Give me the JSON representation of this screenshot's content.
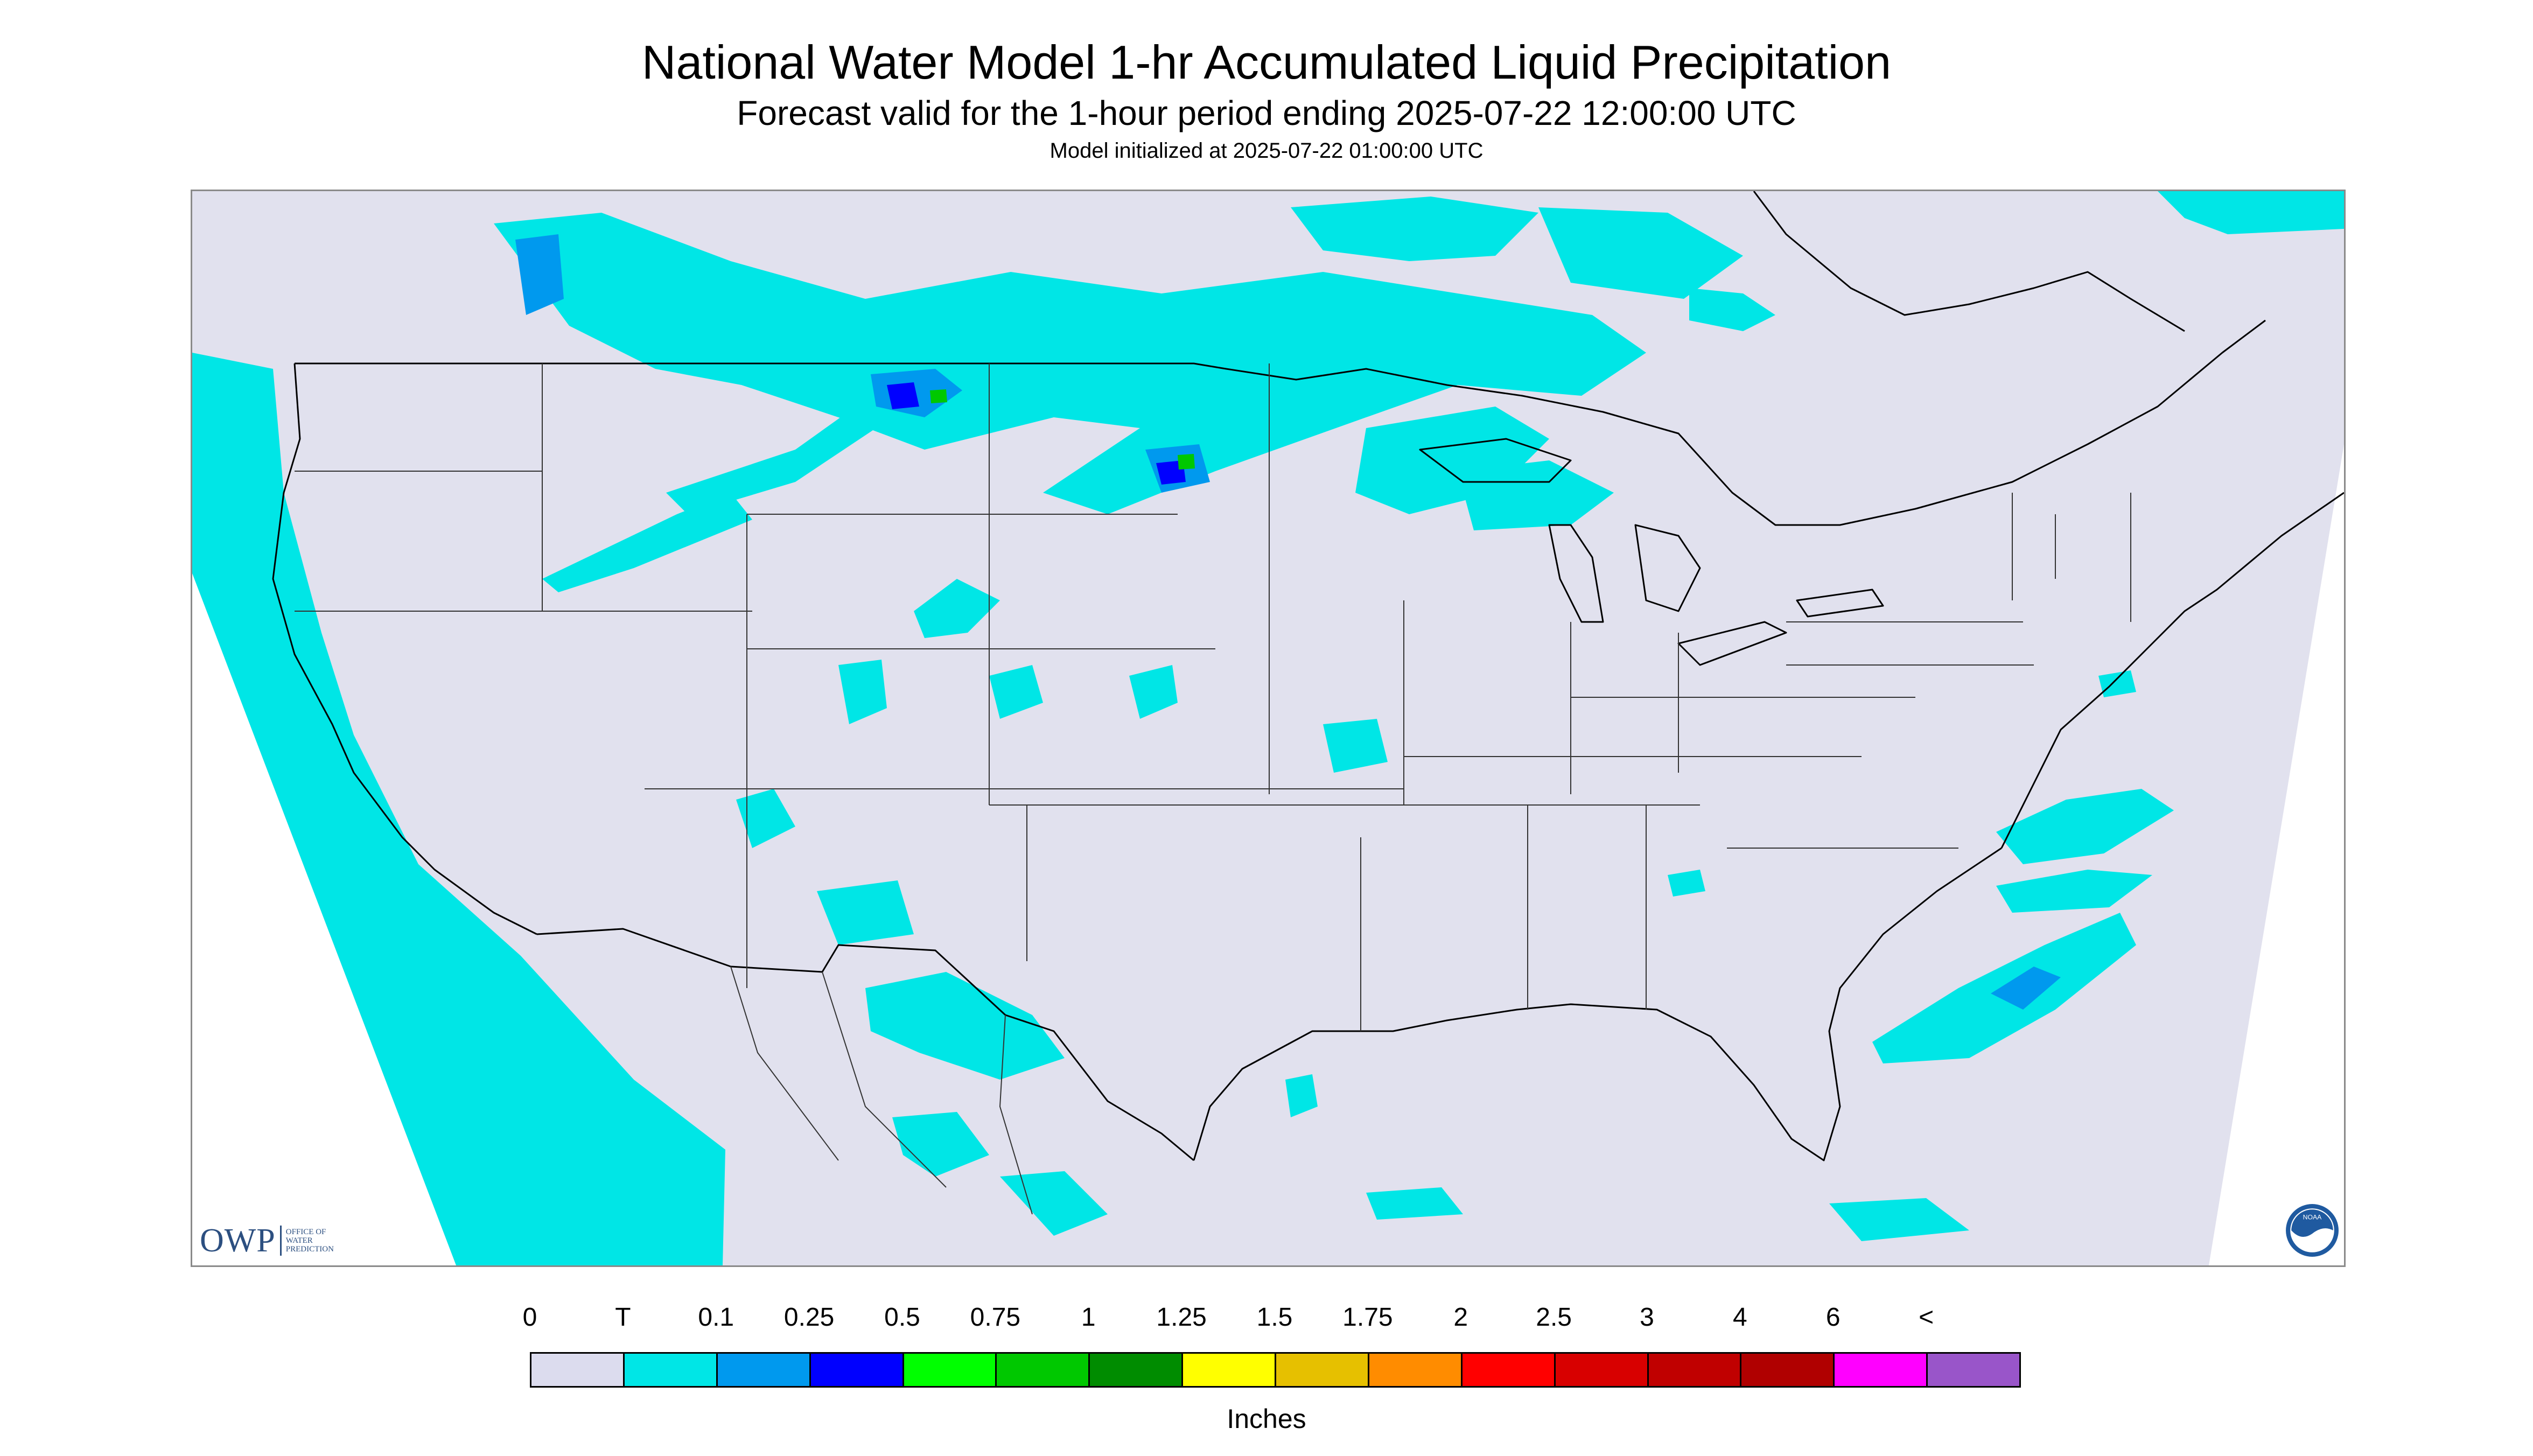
{
  "header": {
    "title": "National Water Model 1-hr Accumulated Liquid Precipitation",
    "subtitle": "Forecast valid for the 1-hour period ending 2025-07-22 12:00:00 UTC",
    "init": "Model initialized at 2025-07-22 01:00:00 UTC"
  },
  "map": {
    "projection_fill": "#e1e1ee",
    "outside_fill": "#ffffff",
    "border_color": "#000000"
  },
  "logos": {
    "owp_letters": "OWP",
    "owp_text_lines": [
      "Office of",
      "Water",
      "Prediction"
    ],
    "noaa_text": "NOAA",
    "owp_color": "#2c4f80",
    "noaa_color": "#1f5aa0"
  },
  "legend": {
    "labels": [
      "0",
      "T",
      "0.1",
      "0.25",
      "0.5",
      "0.75",
      "1",
      "1.25",
      "1.5",
      "1.75",
      "2",
      "2.5",
      "3",
      "4",
      "6",
      "<"
    ],
    "colors": [
      "#dcdcee",
      "#00e6e6",
      "#0099ee",
      "#0000ff",
      "#00ff00",
      "#00c800",
      "#008c00",
      "#ffff00",
      "#e6c000",
      "#ff8c00",
      "#ff0000",
      "#d80000",
      "#c00000",
      "#b00000",
      "#ff00ff",
      "#9955c9"
    ],
    "units": "Inches"
  }
}
